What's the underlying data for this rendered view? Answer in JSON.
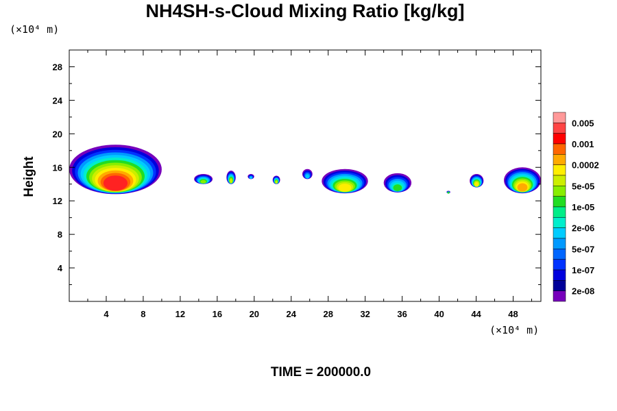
{
  "chart_data": {
    "type": "heatmap",
    "title": "NH4SH-s-Cloud Mixing Ratio [kg/kg]",
    "ylabel": "Height",
    "y_unit": "(×10⁴ m)",
    "x_unit": "(×10⁴ m)",
    "footer": "TIME = 200000.0",
    "xlim": [
      0,
      51
    ],
    "ylim": [
      0,
      30
    ],
    "x_ticks": [
      "4",
      "8",
      "12",
      "16",
      "20",
      "24",
      "28",
      "32",
      "36",
      "40",
      "44",
      "48"
    ],
    "y_ticks": [
      "4",
      "8",
      "12",
      "16",
      "20",
      "24",
      "28"
    ],
    "colorbar": {
      "labels": [
        "0.005",
        "0.001",
        "0.0002",
        "5e-05",
        "1e-05",
        "2e-06",
        "5e-07",
        "1e-07",
        "2e-08"
      ],
      "colors": [
        "#ff9999",
        "#ff4444",
        "#ff0000",
        "#ff6600",
        "#ffaa00",
        "#ffee00",
        "#ccee00",
        "#88ee00",
        "#22dd22",
        "#00ee88",
        "#00eecc",
        "#00ccff",
        "#0099ff",
        "#0066ff",
        "#0033ff",
        "#0000dd",
        "#000099",
        "#7700bb"
      ]
    },
    "clouds": [
      {
        "x": [
          0,
          10
        ],
        "top": 18.7,
        "base": 12.8,
        "core": "#ff2222"
      },
      {
        "x": [
          13.5,
          15.5
        ],
        "top": 15.2,
        "base": 14.0,
        "core": "#88ee00"
      },
      {
        "x": [
          17,
          18
        ],
        "top": 15.6,
        "base": 14.0,
        "core": "#ccee00"
      },
      {
        "x": [
          19.3,
          20
        ],
        "top": 15.2,
        "base": 14.6,
        "core": "#00ccff"
      },
      {
        "x": [
          22,
          22.8
        ],
        "top": 15.0,
        "base": 14.0,
        "core": "#ccee00"
      },
      {
        "x": [
          25.2,
          26.3
        ],
        "top": 15.8,
        "base": 14.6,
        "core": "#00ccff"
      },
      {
        "x": [
          27.3,
          32.3
        ],
        "top": 15.8,
        "base": 12.9,
        "core": "#ffee00"
      },
      {
        "x": [
          34,
          37
        ],
        "top": 15.3,
        "base": 13.0,
        "core": "#22dd22"
      },
      {
        "x": [
          40.8,
          41.2
        ],
        "top": 13.2,
        "base": 12.9,
        "core": "#22dd22"
      },
      {
        "x": [
          43.3,
          44.8
        ],
        "top": 15.2,
        "base": 13.6,
        "core": "#ffee00"
      },
      {
        "x": [
          47,
          51
        ],
        "top": 16.0,
        "base": 12.9,
        "core": "#ffaa00"
      }
    ]
  }
}
